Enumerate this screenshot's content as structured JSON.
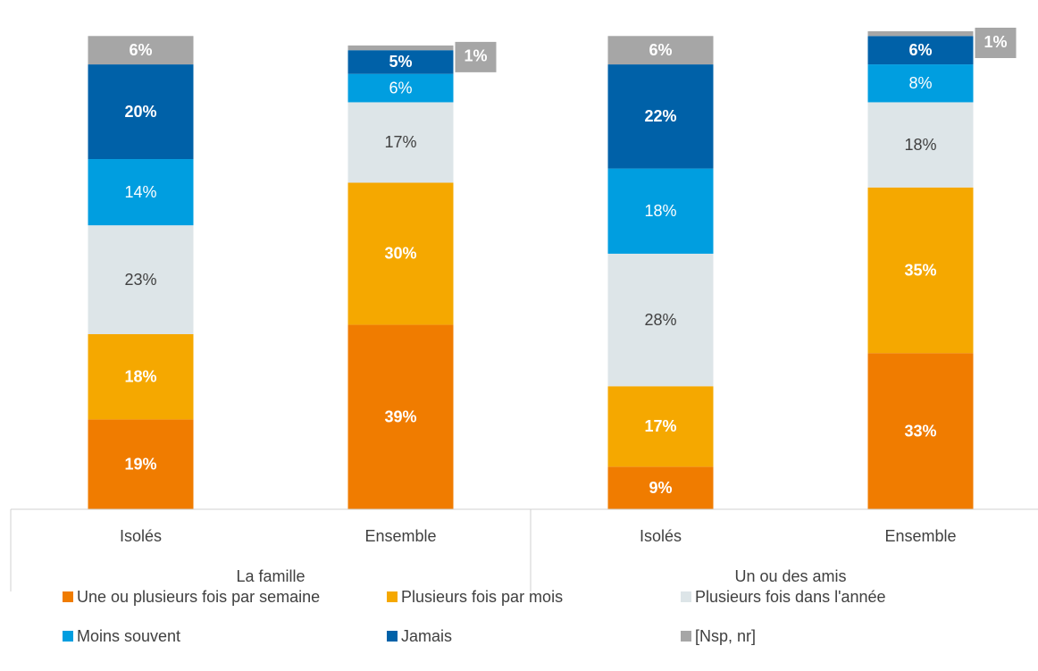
{
  "chart_data": {
    "type": "stacked_bar",
    "categories": [
      "Isolés",
      "Ensemble",
      "Isolés",
      "Ensemble"
    ],
    "groups": [
      "La famille",
      "Un ou des amis"
    ],
    "series": [
      {
        "name": "Une ou plusieurs fois par semaine",
        "color": "#f07c00",
        "values": [
          19,
          39,
          9,
          33
        ],
        "value_labels": [
          "19%",
          "39%",
          "9%",
          "33%"
        ]
      },
      {
        "name": "Plusieurs fois par mois",
        "color": "#f5a800",
        "values": [
          18,
          30,
          17,
          35
        ],
        "value_labels": [
          "18%",
          "30%",
          "17%",
          "35%"
        ]
      },
      {
        "name": "Plusieurs fois dans l'année",
        "color": "#dde5e8",
        "values": [
          23,
          17,
          28,
          18
        ],
        "value_labels": [
          "23%",
          "17%",
          "28%",
          "18%"
        ]
      },
      {
        "name": "Moins souvent",
        "color": "#009ee0",
        "values": [
          14,
          6,
          18,
          8
        ],
        "value_labels": [
          "14%",
          "6%",
          "18%",
          "8%"
        ]
      },
      {
        "name": "Jamais",
        "color": "#0061a8",
        "values": [
          20,
          5,
          22,
          6
        ],
        "value_labels": [
          "20%",
          "5%",
          "22%",
          "6%"
        ]
      },
      {
        "name": "[Nsp, nr]",
        "color": "#a6a6a6",
        "values": [
          6,
          1,
          6,
          1
        ],
        "value_labels": [
          "6%",
          "1%",
          "6%",
          "1%"
        ]
      }
    ]
  }
}
